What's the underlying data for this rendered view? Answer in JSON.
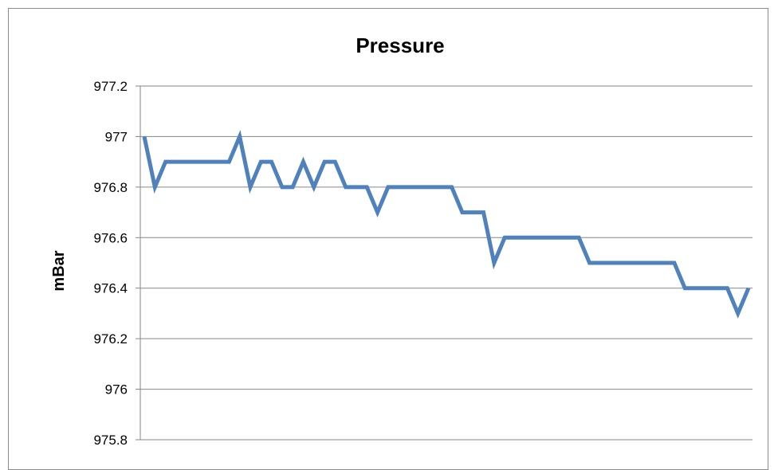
{
  "chart_data": {
    "type": "line",
    "title": "Pressure",
    "xlabel": "",
    "ylabel": "mBar",
    "ylim": [
      975.8,
      977.2
    ],
    "yticks": [
      975.8,
      976,
      976.2,
      976.4,
      976.6,
      976.8,
      977,
      977.2
    ],
    "ytick_labels": [
      "975.8",
      "976",
      "976.2",
      "976.4",
      "976.6",
      "976.8",
      "977",
      "977.2"
    ],
    "grid": true,
    "legend": "none",
    "series_color": "#4f81bd",
    "series": [
      {
        "values": [
          977.0,
          976.8,
          976.9,
          976.9,
          976.9,
          976.9,
          976.9,
          976.9,
          976.9,
          977.0,
          976.8,
          976.9,
          976.9,
          976.8,
          976.8,
          976.9,
          976.8,
          976.9,
          976.9,
          976.8,
          976.8,
          976.8,
          976.7,
          976.8,
          976.8,
          976.8,
          976.8,
          976.8,
          976.8,
          976.8,
          976.7,
          976.7,
          976.7,
          976.5,
          976.6,
          976.6,
          976.6,
          976.6,
          976.6,
          976.6,
          976.6,
          976.6,
          976.5,
          976.5,
          976.5,
          976.5,
          976.5,
          976.5,
          976.5,
          976.5,
          976.5,
          976.4,
          976.4,
          976.4,
          976.4,
          976.4,
          976.3,
          976.4
        ]
      }
    ]
  }
}
